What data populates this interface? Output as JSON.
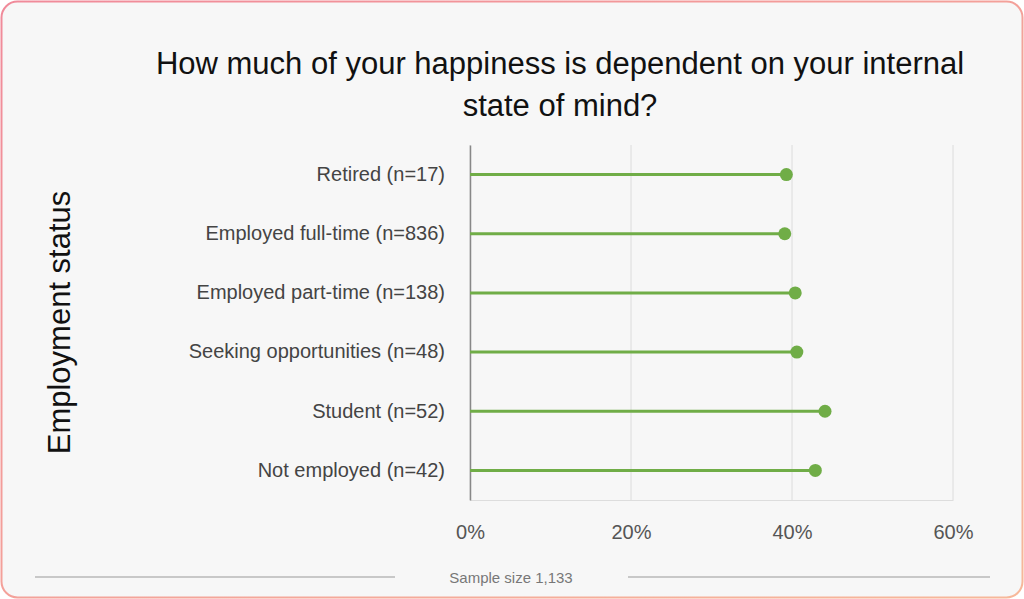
{
  "chart_data": {
    "type": "lollipop",
    "title": "How much of your happiness is dependent on your internal state of mind?",
    "ylabel": "Employment status",
    "annotation": "Sample size 1,133",
    "orientation": "horizontal",
    "categories": [
      "Retired (n=17)",
      "Employed full-time (n=836)",
      "Employed part-time (n=138)",
      "Seeking opportunities (n=48)",
      "Student (n=52)",
      "Not employed (n=42)"
    ],
    "values": [
      39.3,
      39.1,
      40.4,
      40.6,
      44.1,
      42.9
    ],
    "color": "#70ad47",
    "xlim": [
      0,
      60
    ],
    "xticks": [
      {
        "value": 0,
        "label": "0%"
      },
      {
        "value": 20,
        "label": "20%"
      },
      {
        "value": 40,
        "label": "40%"
      },
      {
        "value": 60,
        "label": "60%"
      }
    ],
    "grid": true
  }
}
